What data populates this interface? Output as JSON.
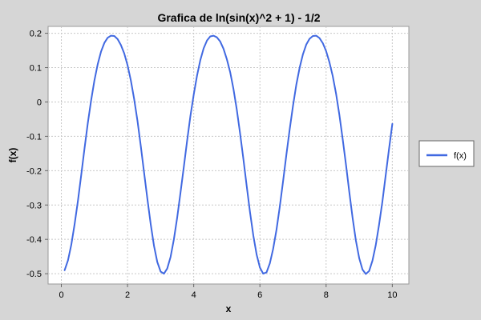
{
  "chart_data": {
    "type": "line",
    "title": "Grafica de ln(sin(x)^2 + 1) - 1/2",
    "xlabel": "x",
    "ylabel": "f(x)",
    "xlim": [
      -0.4,
      10.5
    ],
    "ylim": [
      -0.53,
      0.22
    ],
    "x_ticks": [
      0,
      2,
      4,
      6,
      8,
      10
    ],
    "y_ticks": [
      0.2,
      0.1,
      0,
      -0.1,
      -0.2,
      -0.3,
      -0.4,
      -0.5
    ],
    "x_tick_labels": [
      "0",
      "2",
      "4",
      "6",
      "8",
      "10"
    ],
    "y_tick_labels": [
      "0.2",
      "0.1",
      "0",
      "-0.1",
      "-0.2",
      "-0.3",
      "-0.4",
      "-0.5"
    ],
    "grid": true,
    "legend_position": "right",
    "series": [
      {
        "name": "f(x)",
        "color": "#4169e1",
        "x": [
          0.1,
          0.2,
          0.3,
          0.4,
          0.5,
          0.6,
          0.7,
          0.8,
          0.9,
          1.0,
          1.1,
          1.2,
          1.3,
          1.4,
          1.5,
          1.6,
          1.7,
          1.8,
          1.9,
          2.0,
          2.1,
          2.2,
          2.3,
          2.4,
          2.5,
          2.6,
          2.7,
          2.8,
          2.9,
          3.0,
          3.1,
          3.2,
          3.3,
          3.4,
          3.5,
          3.6,
          3.7,
          3.8,
          3.9,
          4.0,
          4.1,
          4.2,
          4.3,
          4.4,
          4.5,
          4.6,
          4.7,
          4.8,
          4.9,
          5.0,
          5.1,
          5.2,
          5.3,
          5.4,
          5.5,
          5.6,
          5.7,
          5.8,
          5.9,
          6.0,
          6.1,
          6.2,
          6.3,
          6.4,
          6.5,
          6.6,
          6.7,
          6.8,
          6.9,
          7.0,
          7.1,
          7.2,
          7.3,
          7.4,
          7.5,
          7.6,
          7.7,
          7.8,
          7.9,
          8.0,
          8.1,
          8.2,
          8.3,
          8.4,
          8.5,
          8.6,
          8.7,
          8.8,
          8.9,
          9.0,
          9.1,
          9.2,
          9.3,
          9.4,
          9.5,
          9.6,
          9.7,
          9.8,
          9.9,
          10.0
        ],
        "y": [
          -0.49,
          -0.461,
          -0.416,
          -0.357,
          -0.288,
          -0.213,
          -0.136,
          -0.062,
          0.005,
          0.063,
          0.11,
          0.147,
          0.172,
          0.187,
          0.193,
          0.192,
          0.183,
          0.166,
          0.141,
          0.107,
          0.063,
          0.009,
          -0.055,
          -0.128,
          -0.205,
          -0.283,
          -0.356,
          -0.419,
          -0.466,
          -0.494,
          -0.5,
          -0.485,
          -0.451,
          -0.4,
          -0.337,
          -0.265,
          -0.189,
          -0.113,
          -0.041,
          0.022,
          0.077,
          0.122,
          0.156,
          0.179,
          0.191,
          0.193,
          0.188,
          0.176,
          0.155,
          0.125,
          0.087,
          0.038,
          -0.021,
          -0.09,
          -0.166,
          -0.244,
          -0.32,
          -0.389,
          -0.444,
          -0.482,
          -0.5,
          -0.496,
          -0.47,
          -0.428,
          -0.372,
          -0.305,
          -0.231,
          -0.154,
          -0.079,
          -0.011,
          0.05,
          0.1,
          0.139,
          0.167,
          0.184,
          0.192,
          0.193,
          0.186,
          0.171,
          0.148,
          0.116,
          0.076,
          0.024,
          -0.037,
          -0.107,
          -0.183,
          -0.262,
          -0.337,
          -0.403,
          -0.455,
          -0.488,
          -0.501,
          -0.492,
          -0.462,
          -0.417,
          -0.358,
          -0.29,
          -0.214,
          -0.138,
          -0.064
        ]
      }
    ]
  }
}
